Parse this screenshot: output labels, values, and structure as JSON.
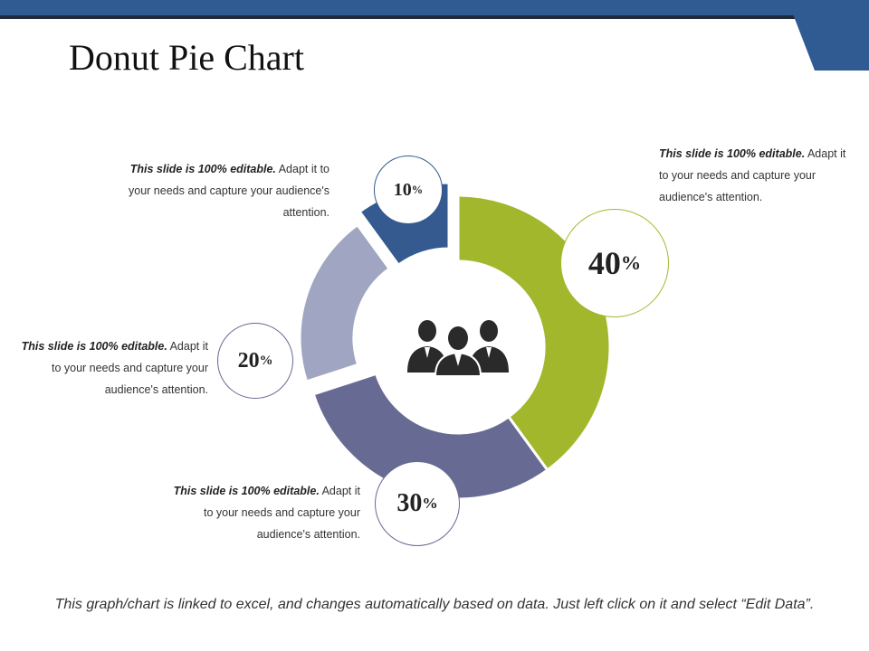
{
  "title": "Donut Pie Chart",
  "footer": "This graph/chart is linked to excel, and changes automatically based on data. Just left click on it and select “Edit Data”.",
  "colors": {
    "header": "#2f5a92",
    "green": "#a3b72c",
    "dark_blue": "#345a8f",
    "light_slate": "#a0a6c2",
    "slate": "#676a93"
  },
  "chart_data": {
    "type": "pie",
    "donut": true,
    "slices": [
      {
        "label": "40%",
        "value": 40,
        "color": "#a3b72c"
      },
      {
        "label": "30%",
        "value": 30,
        "color": "#676a93"
      },
      {
        "label": "20%",
        "value": 20,
        "color": "#a0a6c2"
      },
      {
        "label": "10%",
        "value": 10,
        "color": "#345a8f"
      }
    ]
  },
  "badges": [
    {
      "num": "40",
      "pct": "%"
    },
    {
      "num": "30",
      "pct": "%"
    },
    {
      "num": "20",
      "pct": "%"
    },
    {
      "num": "10",
      "pct": "%"
    }
  ],
  "callouts": [
    {
      "bold": "This slide is 100% editable.",
      "text": " Adapt it to your needs and capture your audience's attention."
    },
    {
      "bold": "This slide is 100% editable.",
      "text": " Adapt it to your needs and capture your audience's attention."
    },
    {
      "bold": "This slide is 100% editable.",
      "text": " Adapt it to your needs and capture your audience's attention."
    },
    {
      "bold": "This slide is 100% editable.",
      "text": " Adapt it to your needs and capture your audience's attention."
    }
  ],
  "center_icon": "people-group-icon"
}
